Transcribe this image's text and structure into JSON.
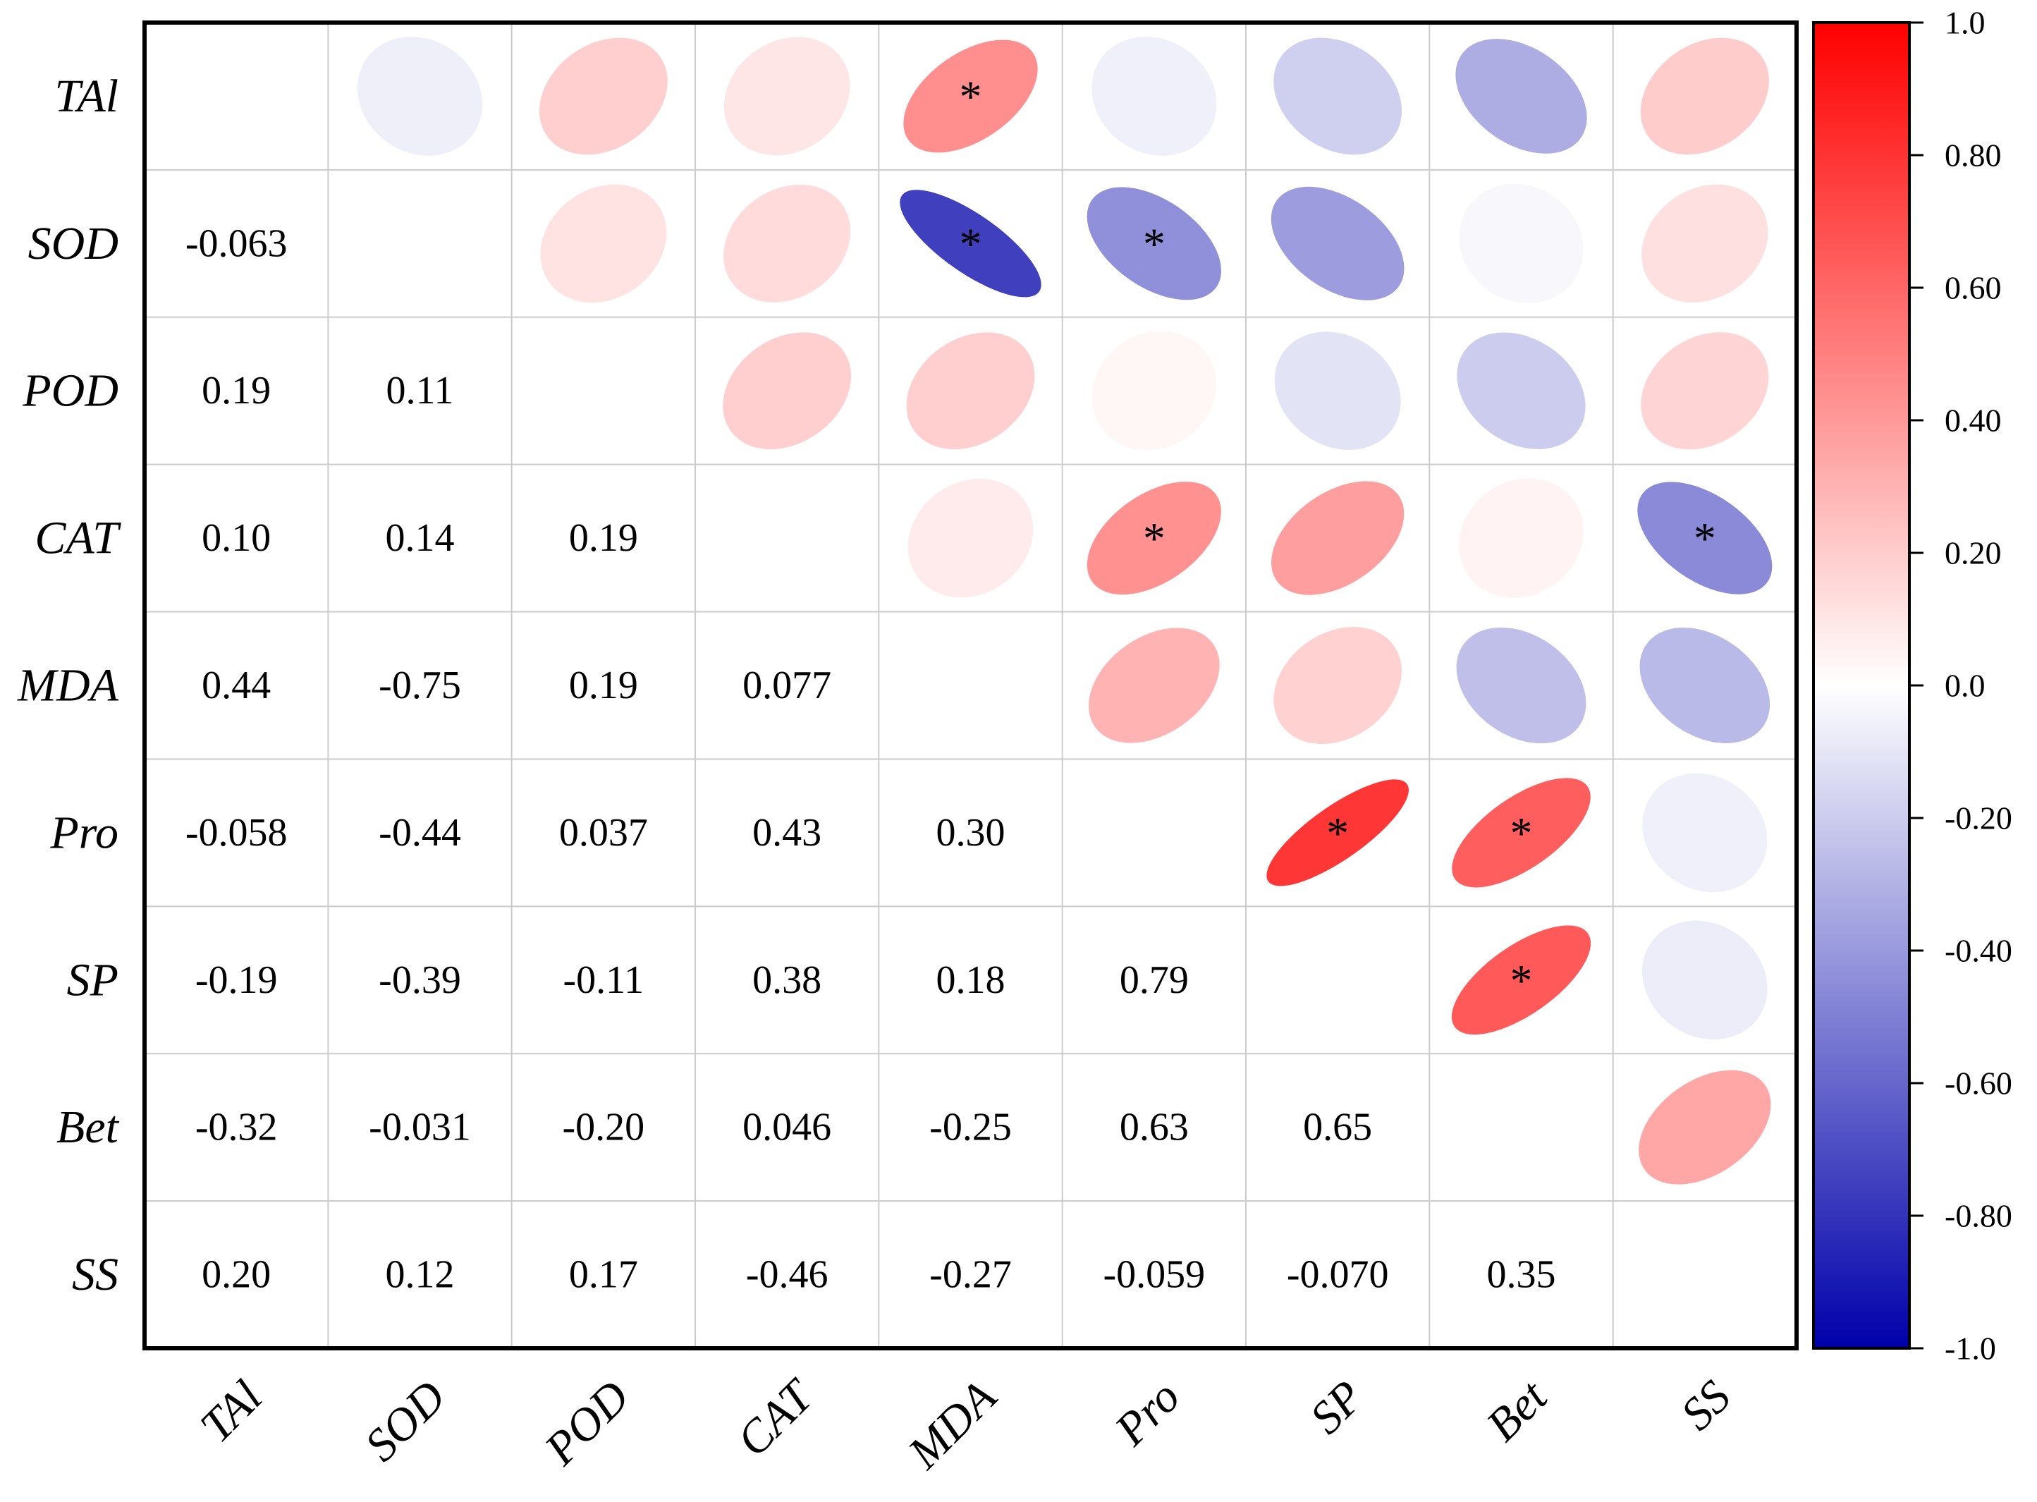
{
  "chart_data": {
    "type": "heatmap",
    "variables": [
      "TAl",
      "SOD",
      "POD",
      "CAT",
      "MDA",
      "Pro",
      "SP",
      "Bet",
      "SS"
    ],
    "lower_labels": [
      [
        null,
        null,
        null,
        null,
        null,
        null,
        null,
        null,
        null
      ],
      [
        "-0.063",
        null,
        null,
        null,
        null,
        null,
        null,
        null,
        null
      ],
      [
        "0.19",
        "0.11",
        null,
        null,
        null,
        null,
        null,
        null,
        null
      ],
      [
        "0.10",
        "0.14",
        "0.19",
        null,
        null,
        null,
        null,
        null,
        null
      ],
      [
        "0.44",
        "-0.75",
        "0.19",
        "0.077",
        null,
        null,
        null,
        null,
        null
      ],
      [
        "-0.058",
        "-0.44",
        "0.037",
        "0.43",
        "0.30",
        null,
        null,
        null,
        null
      ],
      [
        "-0.19",
        "-0.39",
        "-0.11",
        "0.38",
        "0.18",
        "0.79",
        null,
        null,
        null
      ],
      [
        "-0.32",
        "-0.031",
        "-0.20",
        "0.046",
        "-0.25",
        "0.63",
        "0.65",
        null,
        null
      ],
      [
        "0.20",
        "0.12",
        "0.17",
        "-0.46",
        "-0.27",
        "-0.059",
        "-0.070",
        "0.35",
        null
      ]
    ],
    "significant": [
      [
        0,
        4
      ],
      [
        1,
        4
      ],
      [
        1,
        5
      ],
      [
        3,
        5
      ],
      [
        3,
        8
      ],
      [
        5,
        6
      ],
      [
        5,
        7
      ],
      [
        6,
        7
      ]
    ],
    "significance_marker": "*",
    "colorbar": {
      "range": [
        -1.0,
        1.0
      ],
      "ticks": [
        "1.0",
        "0.80",
        "0.60",
        "0.40",
        "0.20",
        "0.0",
        "-0.20",
        "-0.40",
        "-0.60",
        "-0.80",
        "-1.0"
      ],
      "high_color": "#ff0000",
      "mid_color": "#ffffff",
      "low_color": "#0000aa"
    }
  }
}
